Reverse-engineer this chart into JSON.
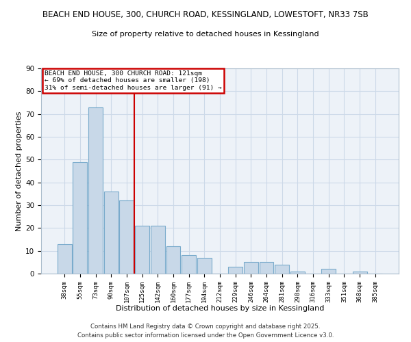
{
  "title1": "BEACH END HOUSE, 300, CHURCH ROAD, KESSINGLAND, LOWESTOFT, NR33 7SB",
  "title2": "Size of property relative to detached houses in Kessingland",
  "xlabel": "Distribution of detached houses by size in Kessingland",
  "ylabel": "Number of detached properties",
  "bin_labels": [
    "38sqm",
    "55sqm",
    "73sqm",
    "90sqm",
    "107sqm",
    "125sqm",
    "142sqm",
    "160sqm",
    "177sqm",
    "194sqm",
    "212sqm",
    "229sqm",
    "246sqm",
    "264sqm",
    "281sqm",
    "298sqm",
    "316sqm",
    "333sqm",
    "351sqm",
    "368sqm",
    "385sqm"
  ],
  "bar_heights": [
    13,
    49,
    73,
    36,
    32,
    21,
    21,
    12,
    8,
    7,
    0,
    3,
    5,
    5,
    4,
    1,
    0,
    2,
    0,
    1,
    0
  ],
  "bar_color": "#c8d8e8",
  "bar_edge_color": "#7aabcc",
  "vline_color": "#cc0000",
  "annotation_text": "BEACH END HOUSE, 300 CHURCH ROAD: 121sqm\n← 69% of detached houses are smaller (198)\n31% of semi-detached houses are larger (91) →",
  "annotation_box_edge": "#cc0000",
  "ylim": [
    0,
    90
  ],
  "yticks": [
    0,
    10,
    20,
    30,
    40,
    50,
    60,
    70,
    80,
    90
  ],
  "grid_color": "#ccd9e8",
  "background_color": "#edf2f8",
  "footer1": "Contains HM Land Registry data © Crown copyright and database right 2025.",
  "footer2": "Contains public sector information licensed under the Open Government Licence v3.0."
}
